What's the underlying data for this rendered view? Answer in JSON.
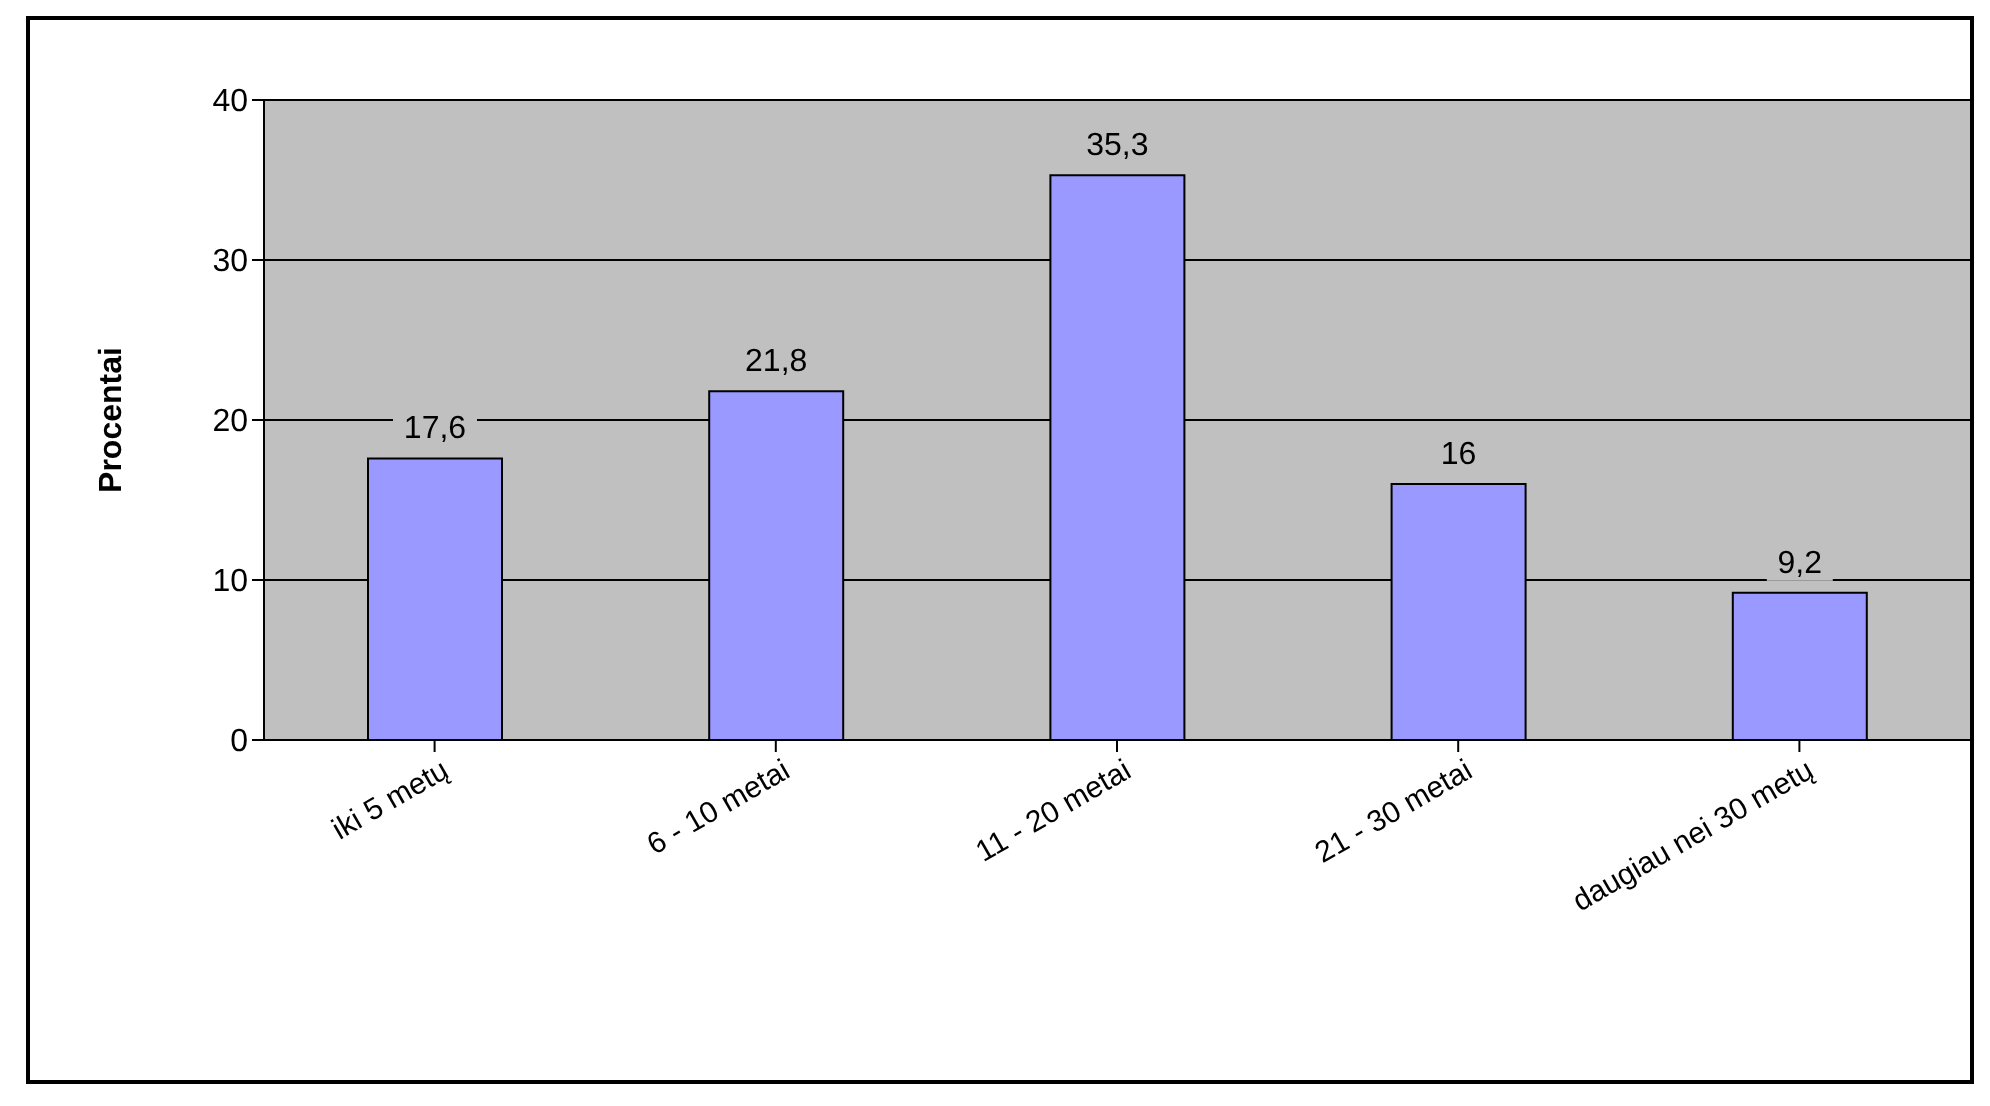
{
  "chart_data": {
    "type": "bar",
    "ylabel": "Procentai",
    "categories": [
      "iki 5 metų",
      "6 - 10 metai",
      "11 - 20 metai",
      "21 - 30 metai",
      "daugiau nei 30 metų"
    ],
    "values": [
      17.6,
      21.8,
      35.3,
      16,
      9.2
    ],
    "value_labels": [
      "17,6",
      "21,8",
      "35,3",
      "16",
      "9,2"
    ],
    "color": "#9999ff",
    "ylim": [
      0,
      40
    ],
    "yticks": [
      0,
      10,
      20,
      30,
      40
    ],
    "grid": "y",
    "legend": false
  }
}
